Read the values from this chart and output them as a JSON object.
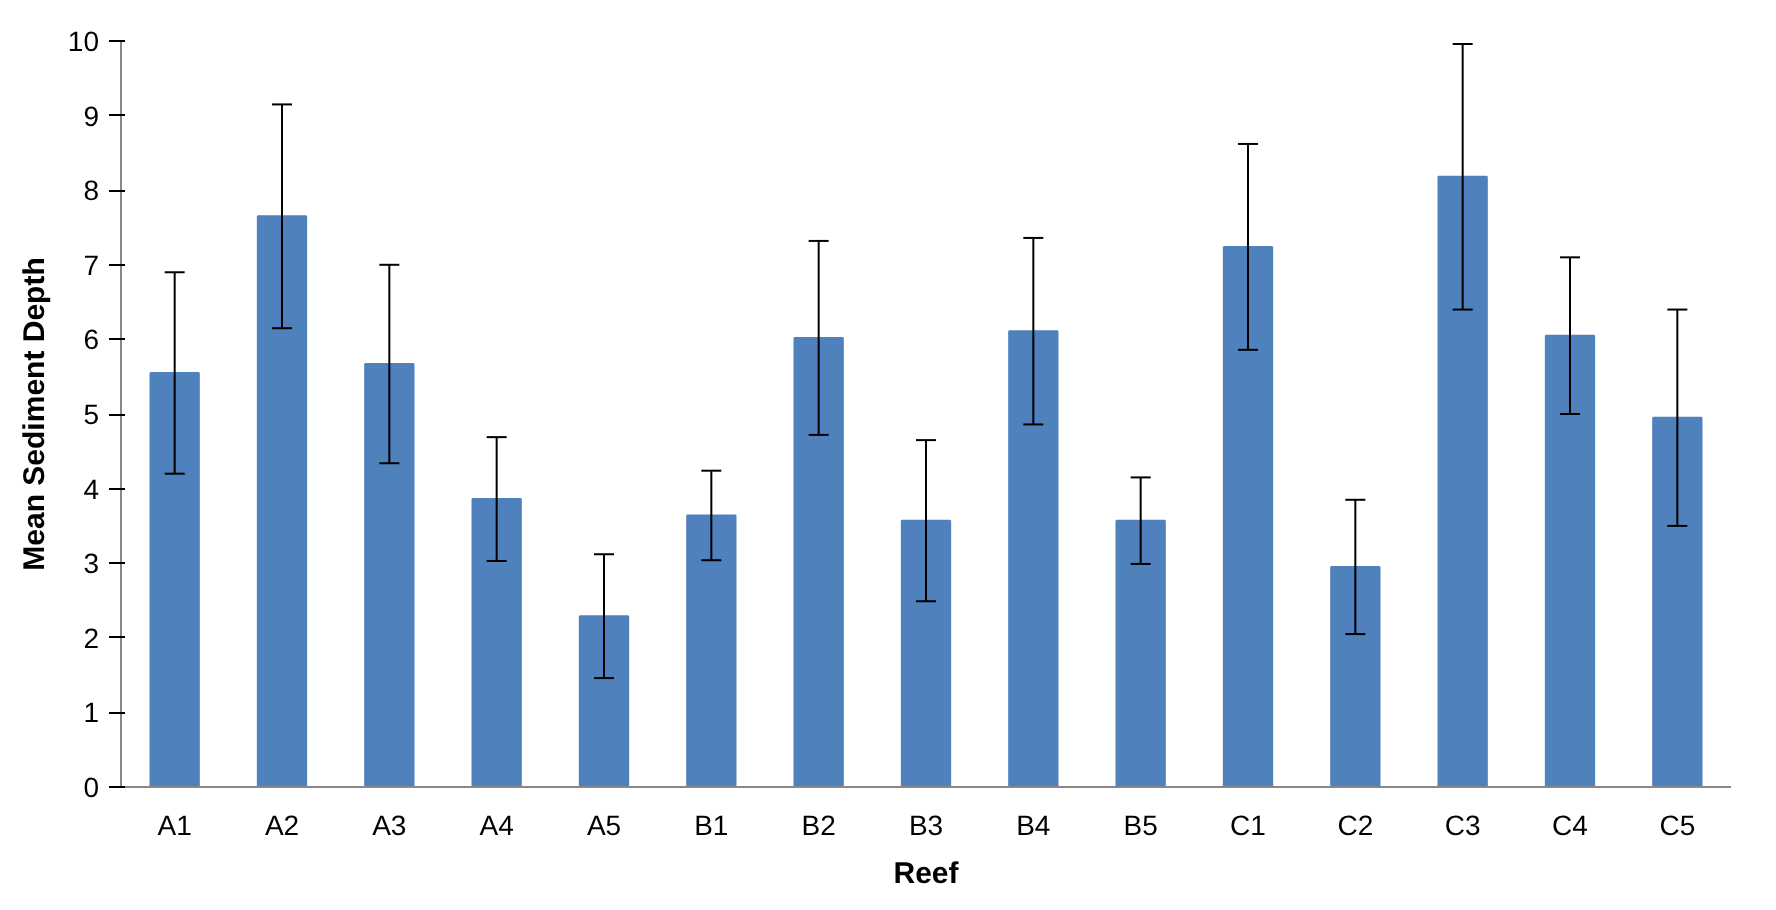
{
  "chart_data": {
    "type": "bar",
    "xlabel": "Reef",
    "ylabel": "Mean Sediment Depth",
    "categories": [
      "A1",
      "A2",
      "A3",
      "A4",
      "A5",
      "B1",
      "B2",
      "B3",
      "B4",
      "B5",
      "C1",
      "C2",
      "C3",
      "C4",
      "C5"
    ],
    "values": [
      5.55,
      7.65,
      5.67,
      3.86,
      2.29,
      3.64,
      6.02,
      3.57,
      6.11,
      3.57,
      7.24,
      2.95,
      8.18,
      6.05,
      4.95
    ],
    "errors": [
      1.35,
      1.5,
      1.33,
      0.83,
      0.83,
      0.6,
      1.3,
      1.08,
      1.25,
      0.58,
      1.38,
      0.9,
      1.78,
      1.05,
      1.45
    ],
    "color": "#4f81bd",
    "ylim": [
      0,
      10
    ],
    "yticks": [
      0,
      1,
      2,
      3,
      4,
      5,
      6,
      7,
      8,
      9,
      10
    ],
    "grid": false
  }
}
